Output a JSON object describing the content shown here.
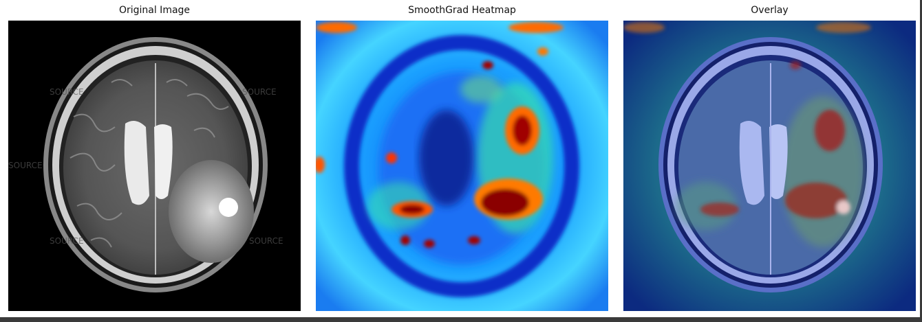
{
  "panels": [
    {
      "title": "Original Image",
      "image": "brain-mri-t2-axial"
    },
    {
      "title": "SmoothGrad Heatmap",
      "image": "smoothgrad-heatmap"
    },
    {
      "title": "Overlay",
      "image": "heatmap-overlay-on-mri"
    }
  ],
  "watermark_text": "SOURCE",
  "colors": {
    "mri_background": "#000000",
    "heatmap_low": "#00129c",
    "heatmap_mid": "#00c8ff",
    "heatmap_high": "#8b0000",
    "overlay_tint": "#0a1f8a"
  }
}
